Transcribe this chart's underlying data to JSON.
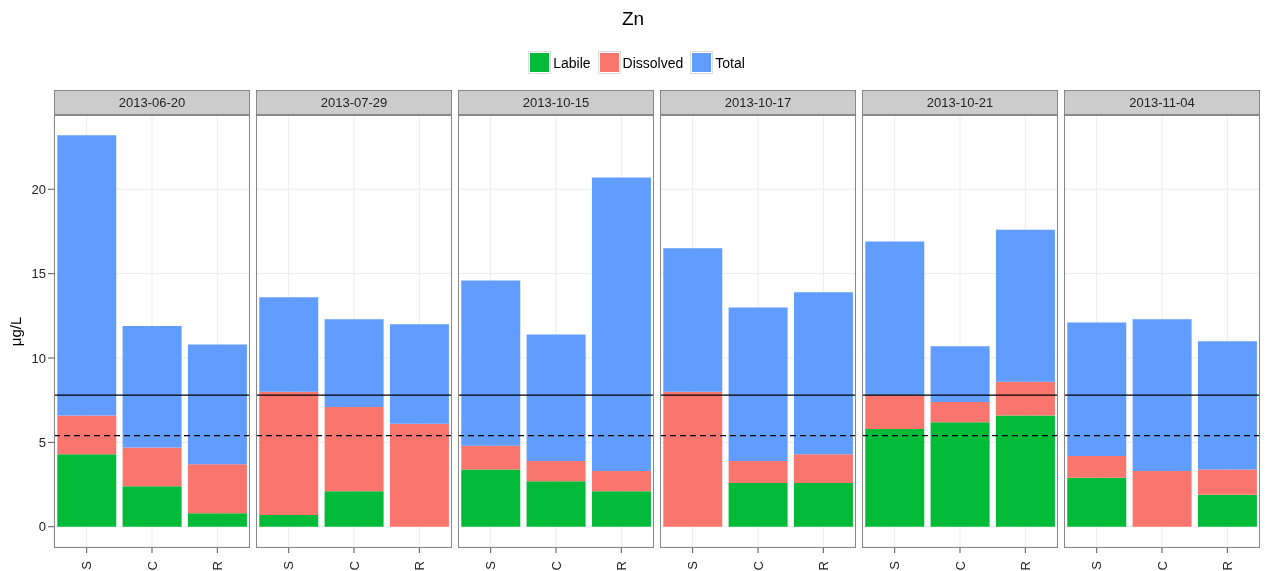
{
  "chart_data": [
    {
      "type": "bar",
      "subtitle": "2013-06-20",
      "ylabel": "μg/L",
      "categories": [
        "S",
        "C",
        "R"
      ],
      "stacked": true,
      "legend": "top",
      "grid": true,
      "ylim": [
        -1.2,
        24.4
      ],
      "yticks": [
        0,
        5,
        10,
        15,
        20
      ],
      "series": [
        {
          "name": "Labile",
          "color": "#00ba38",
          "values": [
            4.3,
            2.4,
            0.8
          ]
        },
        {
          "name": "Dissolved",
          "color": "#f8766d",
          "values": [
            2.3,
            2.3,
            2.9
          ]
        },
        {
          "name": "Total",
          "color": "#619cff",
          "values": [
            16.6,
            7.2,
            7.1
          ]
        }
      ],
      "ref_lines": [
        {
          "axis": "y",
          "value": 7.8,
          "line_style": "solid",
          "color": "#000000"
        },
        {
          "axis": "y",
          "value": 5.4,
          "line_style": "dashed",
          "color": "#000000"
        }
      ]
    },
    {
      "type": "bar",
      "subtitle": "2013-07-29",
      "categories": [
        "S",
        "C",
        "R"
      ],
      "stacked": true,
      "grid": true,
      "ylim": [
        -1.2,
        24.4
      ],
      "yticks": [
        0,
        5,
        10,
        15,
        20
      ],
      "tick_labels": "x",
      "series": [
        {
          "color": "#00ba38",
          "values": [
            0.7,
            2.1,
            0
          ]
        },
        {
          "color": "#f8766d",
          "values": [
            7.3,
            5.0,
            6.1
          ]
        },
        {
          "color": "#619cff",
          "values": [
            5.6,
            5.2,
            5.9
          ]
        }
      ],
      "ref_lines": [
        {
          "axis": "y",
          "value": 7.8,
          "line_style": "solid",
          "color": "#000000"
        },
        {
          "axis": "y",
          "value": 5.4,
          "line_style": "dashed",
          "color": "#000000"
        }
      ]
    },
    {
      "type": "bar",
      "title": "Zn",
      "subtitle": "2013-10-15",
      "categories": [
        "S",
        "C",
        "R"
      ],
      "stacked": true,
      "grid": true,
      "ylim": [
        -1.2,
        24.4
      ],
      "yticks": [
        0,
        5,
        10,
        15,
        20
      ],
      "tick_labels": "x",
      "series": [
        {
          "color": "#00ba38",
          "values": [
            3.4,
            2.7,
            2.1
          ]
        },
        {
          "color": "#f8766d",
          "values": [
            1.4,
            1.2,
            1.2
          ]
        },
        {
          "color": "#619cff",
          "values": [
            9.8,
            7.5,
            17.4
          ]
        }
      ],
      "ref_lines": [
        {
          "axis": "y",
          "value": 7.8,
          "line_style": "solid",
          "color": "#000000"
        },
        {
          "axis": "y",
          "value": 5.4,
          "line_style": "dashed",
          "color": "#000000"
        }
      ]
    },
    {
      "type": "bar",
      "subtitle": "2013-10-17",
      "categories": [
        "S",
        "C",
        "R"
      ],
      "stacked": true,
      "grid": true,
      "ylim": [
        -1.2,
        24.4
      ],
      "yticks": [
        0,
        5,
        10,
        15,
        20
      ],
      "tick_labels": "x",
      "series": [
        {
          "color": "#00ba38",
          "values": [
            0,
            2.6,
            2.6
          ]
        },
        {
          "color": "#f8766d",
          "values": [
            8.0,
            1.3,
            1.7
          ]
        },
        {
          "color": "#619cff",
          "values": [
            8.5,
            9.1,
            9.6
          ]
        }
      ],
      "ref_lines": [
        {
          "axis": "y",
          "value": 7.8,
          "line_style": "solid",
          "color": "#000000"
        },
        {
          "axis": "y",
          "value": 5.4,
          "line_style": "dashed",
          "color": "#000000"
        }
      ]
    },
    {
      "type": "bar",
      "subtitle": "2013-10-21",
      "categories": [
        "S",
        "C",
        "R"
      ],
      "stacked": true,
      "grid": true,
      "ylim": [
        -1.2,
        24.4
      ],
      "yticks": [
        0,
        5,
        10,
        15,
        20
      ],
      "tick_labels": "x",
      "series": [
        {
          "color": "#00ba38",
          "values": [
            5.8,
            6.2,
            6.6
          ]
        },
        {
          "color": "#f8766d",
          "values": [
            2.0,
            1.2,
            2.0
          ]
        },
        {
          "color": "#619cff",
          "values": [
            9.1,
            3.3,
            9.0
          ]
        }
      ],
      "ref_lines": [
        {
          "axis": "y",
          "value": 7.8,
          "line_style": "solid",
          "color": "#000000"
        },
        {
          "axis": "y",
          "value": 5.4,
          "line_style": "dashed",
          "color": "#000000"
        }
      ]
    },
    {
      "type": "bar",
      "subtitle": "2013-11-04",
      "categories": [
        "S",
        "C",
        "R"
      ],
      "stacked": true,
      "grid": true,
      "ylim": [
        -1.2,
        24.4
      ],
      "yticks": [
        0,
        5,
        10,
        15,
        20
      ],
      "tick_labels": "x",
      "series": [
        {
          "color": "#00ba38",
          "values": [
            2.9,
            0,
            1.9
          ]
        },
        {
          "color": "#f8766d",
          "values": [
            1.3,
            3.3,
            1.5
          ]
        },
        {
          "color": "#619cff",
          "values": [
            7.9,
            9.0,
            7.6
          ]
        }
      ],
      "ref_lines": [
        {
          "axis": "y",
          "value": 7.8,
          "line_style": "solid",
          "color": "#000000"
        },
        {
          "axis": "y",
          "value": 5.4,
          "line_style": "dashed",
          "color": "#000000"
        }
      ]
    }
  ]
}
